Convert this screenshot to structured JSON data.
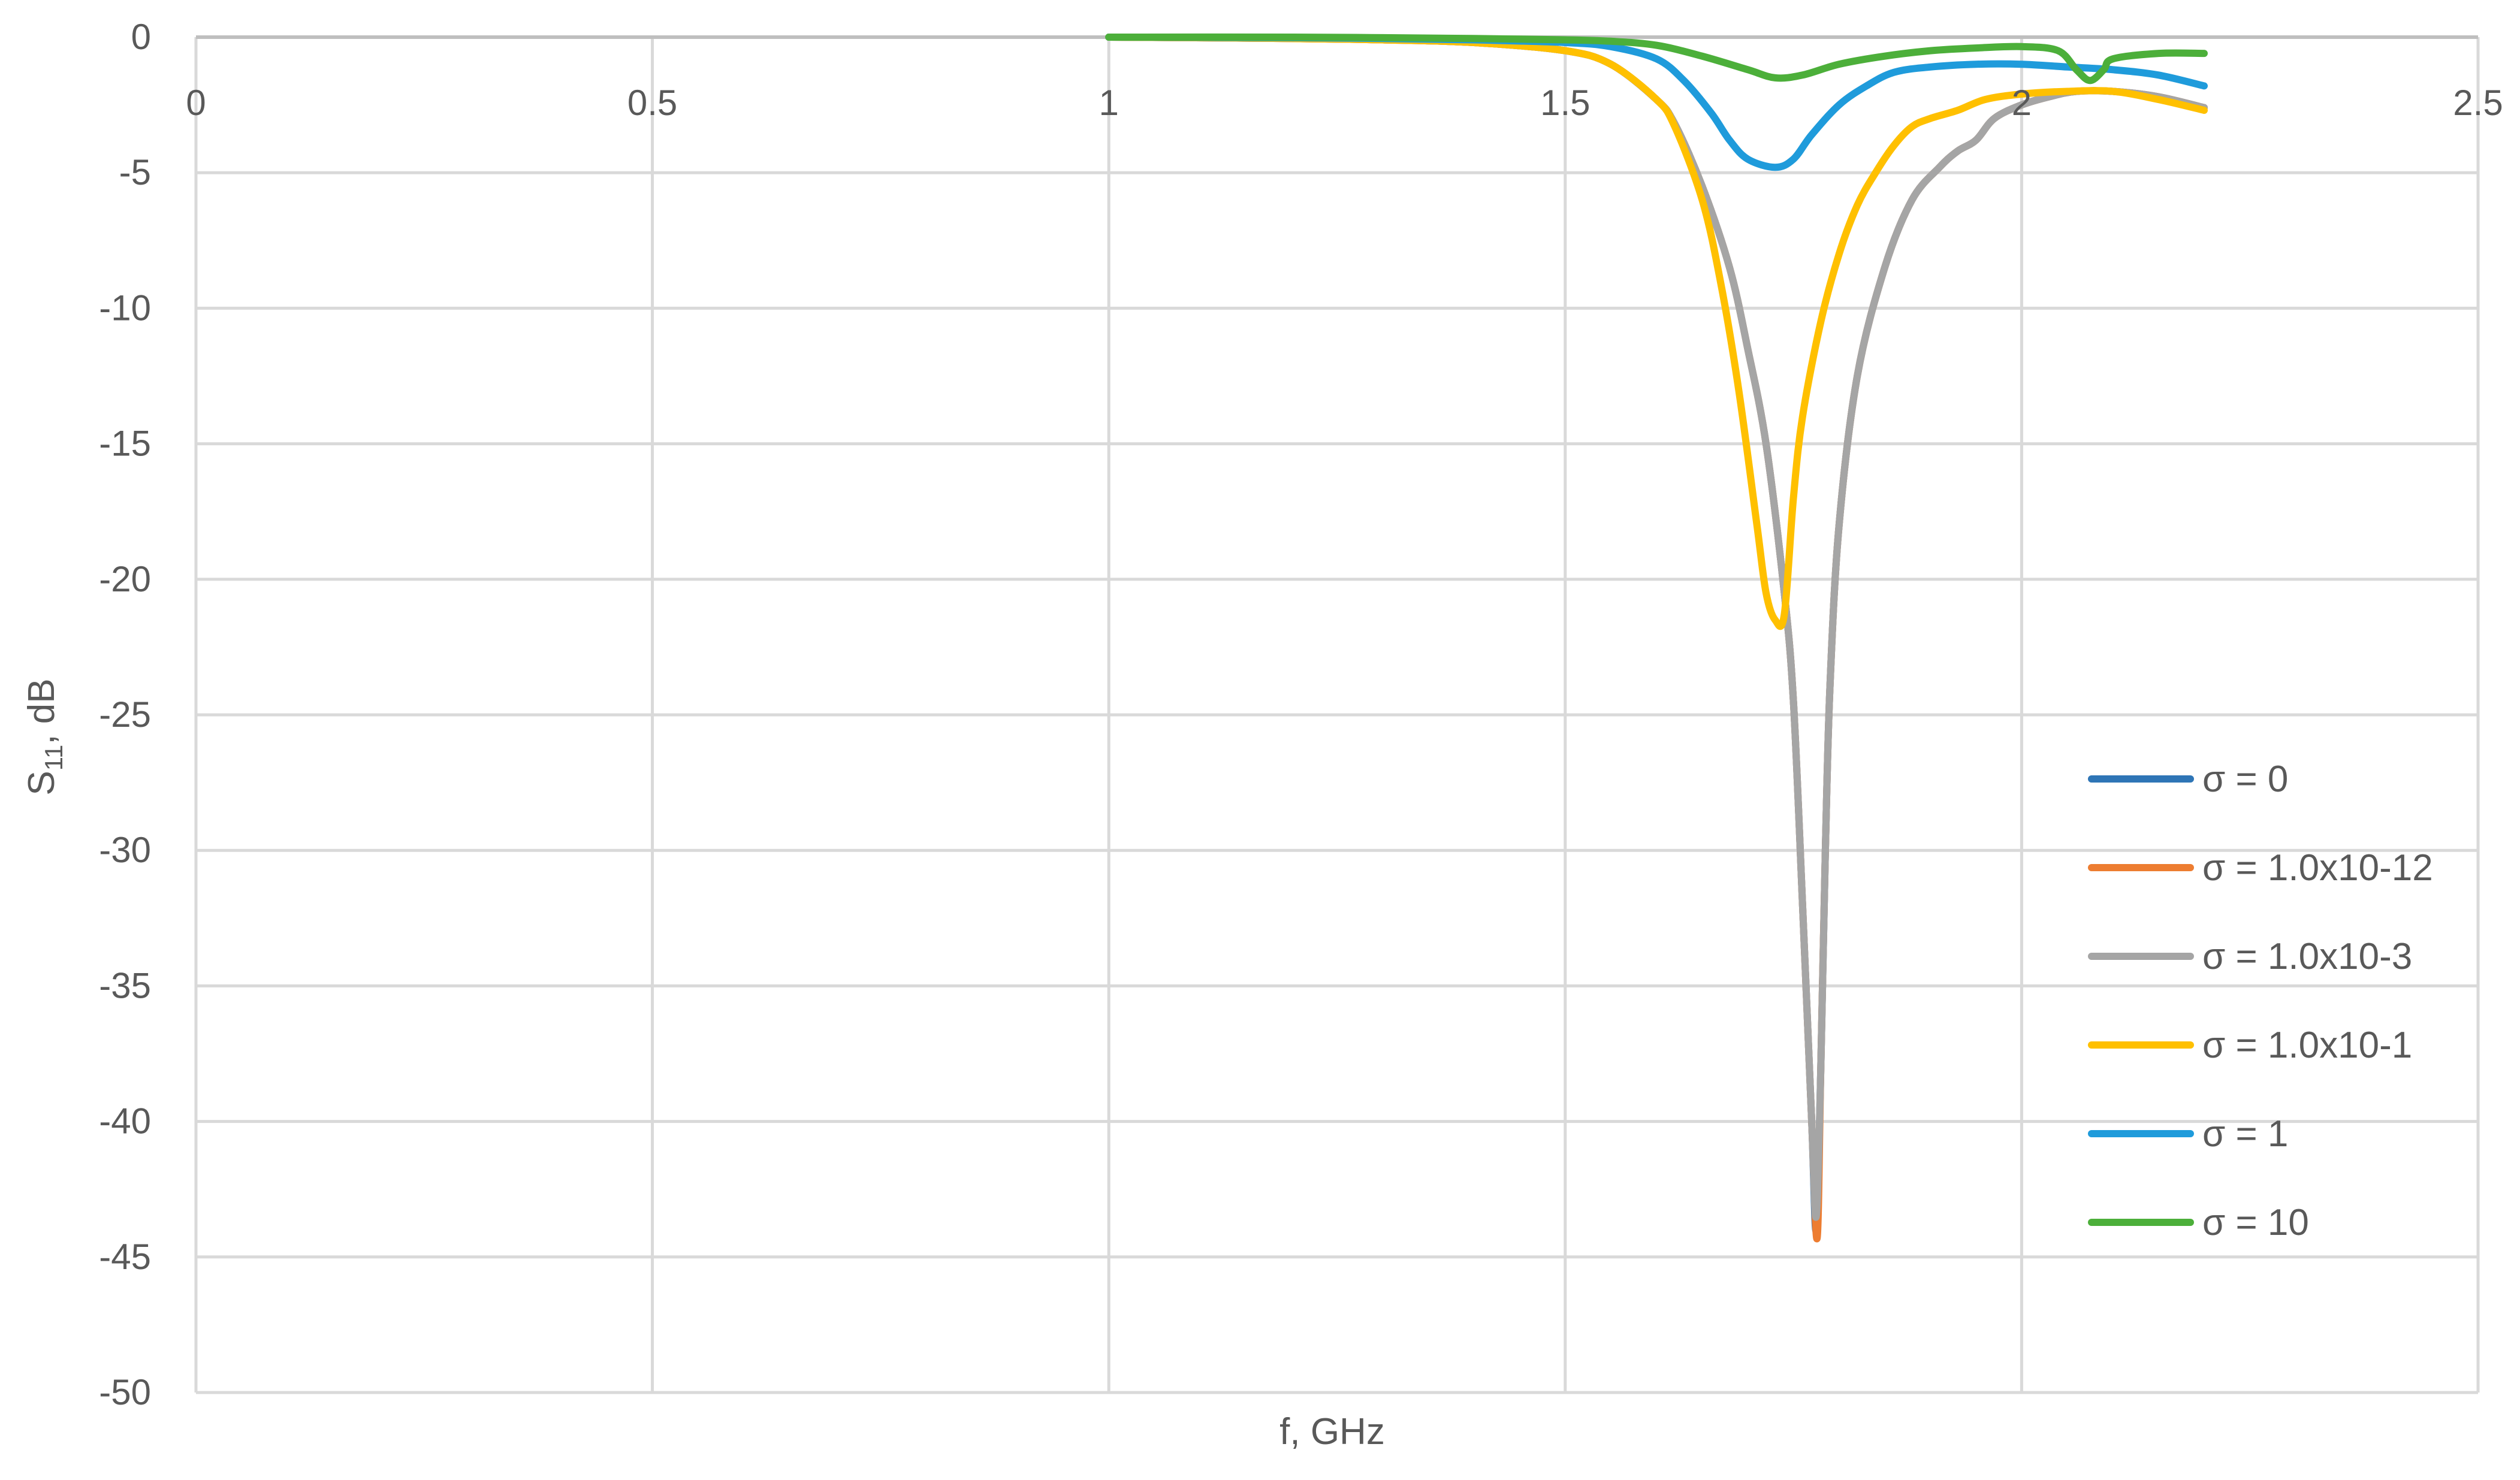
{
  "chart_data": {
    "type": "line",
    "title": "",
    "xlabel": "f, GHz",
    "ylabel": {
      "main": "S",
      "subscript": "11",
      "suffix": ", dB"
    },
    "xlim": [
      0,
      2.5
    ],
    "ylim": [
      -50,
      0
    ],
    "x_ticks": [
      0,
      0.5,
      1,
      1.5,
      2,
      2.5
    ],
    "x_tick_labels": [
      "0",
      "0.5",
      "1",
      "1.5",
      "2",
      "2.5"
    ],
    "y_ticks": [
      0,
      -5,
      -10,
      -15,
      -20,
      -25,
      -30,
      -35,
      -40,
      -45,
      -50
    ],
    "y_tick_labels": [
      "0",
      "-5",
      "-10",
      "-15",
      "-20",
      "-25",
      "-30",
      "-35",
      "-40",
      "-45",
      "-50"
    ],
    "x_axis_position": "top (at y = 0)",
    "grid": true,
    "legend_position": "right",
    "series": [
      {
        "name": "σ = 0",
        "color": "#2E75B6",
        "points": [
          [
            1.0,
            0
          ],
          [
            1.2,
            -0.05
          ],
          [
            1.3,
            -0.1
          ],
          [
            1.4,
            -0.2
          ],
          [
            1.5,
            -0.5
          ],
          [
            1.55,
            -1.0
          ],
          [
            1.6,
            -2.3
          ],
          [
            1.62,
            -3.2
          ],
          [
            1.65,
            -5.5
          ],
          [
            1.68,
            -8.5
          ],
          [
            1.7,
            -11.5
          ],
          [
            1.72,
            -15.0
          ],
          [
            1.74,
            -20.5
          ],
          [
            1.75,
            -24.5
          ],
          [
            1.76,
            -32.0
          ],
          [
            1.77,
            -40.0
          ],
          [
            1.775,
            -44.0
          ],
          [
            1.78,
            -38.0
          ],
          [
            1.785,
            -30.0
          ],
          [
            1.79,
            -24.0
          ],
          [
            1.8,
            -18.0
          ],
          [
            1.82,
            -12.5
          ],
          [
            1.85,
            -8.5
          ],
          [
            1.88,
            -6.0
          ],
          [
            1.91,
            -4.8
          ],
          [
            1.93,
            -4.2
          ],
          [
            1.95,
            -3.8
          ],
          [
            1.97,
            -3.0
          ],
          [
            2.0,
            -2.5
          ],
          [
            2.03,
            -2.2
          ],
          [
            2.06,
            -2.0
          ],
          [
            2.1,
            -2.0
          ],
          [
            2.15,
            -2.2
          ],
          [
            2.2,
            -2.6
          ]
        ]
      },
      {
        "name": "σ = 1.0x10-12",
        "color": "#ED7D31",
        "points": [
          [
            1.0,
            0
          ],
          [
            1.2,
            -0.05
          ],
          [
            1.3,
            -0.1
          ],
          [
            1.4,
            -0.2
          ],
          [
            1.5,
            -0.5
          ],
          [
            1.55,
            -1.0
          ],
          [
            1.6,
            -2.3
          ],
          [
            1.62,
            -3.2
          ],
          [
            1.65,
            -5.5
          ],
          [
            1.68,
            -8.5
          ],
          [
            1.7,
            -11.5
          ],
          [
            1.72,
            -15.0
          ],
          [
            1.74,
            -20.5
          ],
          [
            1.75,
            -24.5
          ],
          [
            1.76,
            -32.0
          ],
          [
            1.77,
            -40.0
          ],
          [
            1.776,
            -44.3
          ],
          [
            1.78,
            -38.0
          ],
          [
            1.785,
            -30.0
          ],
          [
            1.79,
            -24.0
          ],
          [
            1.8,
            -18.0
          ],
          [
            1.82,
            -12.5
          ],
          [
            1.85,
            -8.5
          ],
          [
            1.88,
            -6.0
          ],
          [
            1.91,
            -4.8
          ],
          [
            1.93,
            -4.2
          ],
          [
            1.95,
            -3.8
          ],
          [
            1.97,
            -3.0
          ],
          [
            2.0,
            -2.5
          ],
          [
            2.03,
            -2.2
          ],
          [
            2.06,
            -2.0
          ],
          [
            2.1,
            -2.0
          ],
          [
            2.15,
            -2.2
          ],
          [
            2.2,
            -2.6
          ]
        ]
      },
      {
        "name": "σ = 1.0x10-3",
        "color": "#A5A5A5",
        "points": [
          [
            1.0,
            0
          ],
          [
            1.2,
            -0.05
          ],
          [
            1.3,
            -0.1
          ],
          [
            1.4,
            -0.2
          ],
          [
            1.5,
            -0.5
          ],
          [
            1.55,
            -1.0
          ],
          [
            1.6,
            -2.3
          ],
          [
            1.62,
            -3.2
          ],
          [
            1.65,
            -5.5
          ],
          [
            1.68,
            -8.5
          ],
          [
            1.7,
            -11.5
          ],
          [
            1.72,
            -15.0
          ],
          [
            1.74,
            -20.5
          ],
          [
            1.75,
            -24.5
          ],
          [
            1.76,
            -32.0
          ],
          [
            1.77,
            -40.0
          ],
          [
            1.775,
            -43.5
          ],
          [
            1.78,
            -38.0
          ],
          [
            1.785,
            -30.0
          ],
          [
            1.79,
            -24.0
          ],
          [
            1.8,
            -18.0
          ],
          [
            1.82,
            -12.5
          ],
          [
            1.85,
            -8.5
          ],
          [
            1.88,
            -6.0
          ],
          [
            1.91,
            -4.8
          ],
          [
            1.93,
            -4.2
          ],
          [
            1.95,
            -3.8
          ],
          [
            1.97,
            -3.0
          ],
          [
            2.0,
            -2.5
          ],
          [
            2.03,
            -2.2
          ],
          [
            2.06,
            -2.0
          ],
          [
            2.1,
            -2.0
          ],
          [
            2.15,
            -2.2
          ],
          [
            2.2,
            -2.6
          ]
        ]
      },
      {
        "name": "σ = 1.0x10-1",
        "color": "#FFC000",
        "points": [
          [
            1.0,
            0
          ],
          [
            1.2,
            -0.05
          ],
          [
            1.3,
            -0.1
          ],
          [
            1.4,
            -0.2
          ],
          [
            1.5,
            -0.5
          ],
          [
            1.55,
            -1.0
          ],
          [
            1.6,
            -2.3
          ],
          [
            1.62,
            -3.3
          ],
          [
            1.65,
            -6.0
          ],
          [
            1.67,
            -9.0
          ],
          [
            1.69,
            -13.0
          ],
          [
            1.71,
            -18.0
          ],
          [
            1.72,
            -20.5
          ],
          [
            1.73,
            -21.5
          ],
          [
            1.74,
            -21.3
          ],
          [
            1.75,
            -17.0
          ],
          [
            1.76,
            -14.0
          ],
          [
            1.78,
            -10.5
          ],
          [
            1.8,
            -8.0
          ],
          [
            1.82,
            -6.2
          ],
          [
            1.84,
            -5.0
          ],
          [
            1.86,
            -4.0
          ],
          [
            1.88,
            -3.3
          ],
          [
            1.9,
            -3.0
          ],
          [
            1.93,
            -2.7
          ],
          [
            1.96,
            -2.3
          ],
          [
            2.0,
            -2.1
          ],
          [
            2.05,
            -2.0
          ],
          [
            2.1,
            -2.0
          ],
          [
            2.15,
            -2.3
          ],
          [
            2.2,
            -2.7
          ]
        ]
      },
      {
        "name": "σ = 1",
        "color": "#1F9BDB",
        "points": [
          [
            1.0,
            0
          ],
          [
            1.2,
            -0.02
          ],
          [
            1.3,
            -0.05
          ],
          [
            1.4,
            -0.1
          ],
          [
            1.5,
            -0.2
          ],
          [
            1.55,
            -0.35
          ],
          [
            1.6,
            -0.8
          ],
          [
            1.63,
            -1.6
          ],
          [
            1.66,
            -2.8
          ],
          [
            1.68,
            -3.8
          ],
          [
            1.7,
            -4.5
          ],
          [
            1.73,
            -4.8
          ],
          [
            1.75,
            -4.5
          ],
          [
            1.77,
            -3.6
          ],
          [
            1.8,
            -2.5
          ],
          [
            1.83,
            -1.8
          ],
          [
            1.86,
            -1.3
          ],
          [
            1.9,
            -1.1
          ],
          [
            1.95,
            -1.0
          ],
          [
            2.0,
            -1.0
          ],
          [
            2.05,
            -1.1
          ],
          [
            2.1,
            -1.2
          ],
          [
            2.15,
            -1.4
          ],
          [
            2.2,
            -1.8
          ]
        ]
      },
      {
        "name": "σ = 10",
        "color": "#4CAF3A",
        "points": [
          [
            1.0,
            0
          ],
          [
            1.2,
            0
          ],
          [
            1.3,
            -0.02
          ],
          [
            1.4,
            -0.05
          ],
          [
            1.5,
            -0.1
          ],
          [
            1.55,
            -0.15
          ],
          [
            1.6,
            -0.3
          ],
          [
            1.65,
            -0.7
          ],
          [
            1.7,
            -1.2
          ],
          [
            1.73,
            -1.5
          ],
          [
            1.76,
            -1.4
          ],
          [
            1.8,
            -1.0
          ],
          [
            1.85,
            -0.7
          ],
          [
            1.9,
            -0.5
          ],
          [
            1.95,
            -0.4
          ],
          [
            2.0,
            -0.35
          ],
          [
            2.04,
            -0.5
          ],
          [
            2.06,
            -1.2
          ],
          [
            2.075,
            -1.6
          ],
          [
            2.09,
            -1.2
          ],
          [
            2.1,
            -0.8
          ],
          [
            2.15,
            -0.6
          ],
          [
            2.2,
            -0.6
          ]
        ]
      }
    ]
  }
}
